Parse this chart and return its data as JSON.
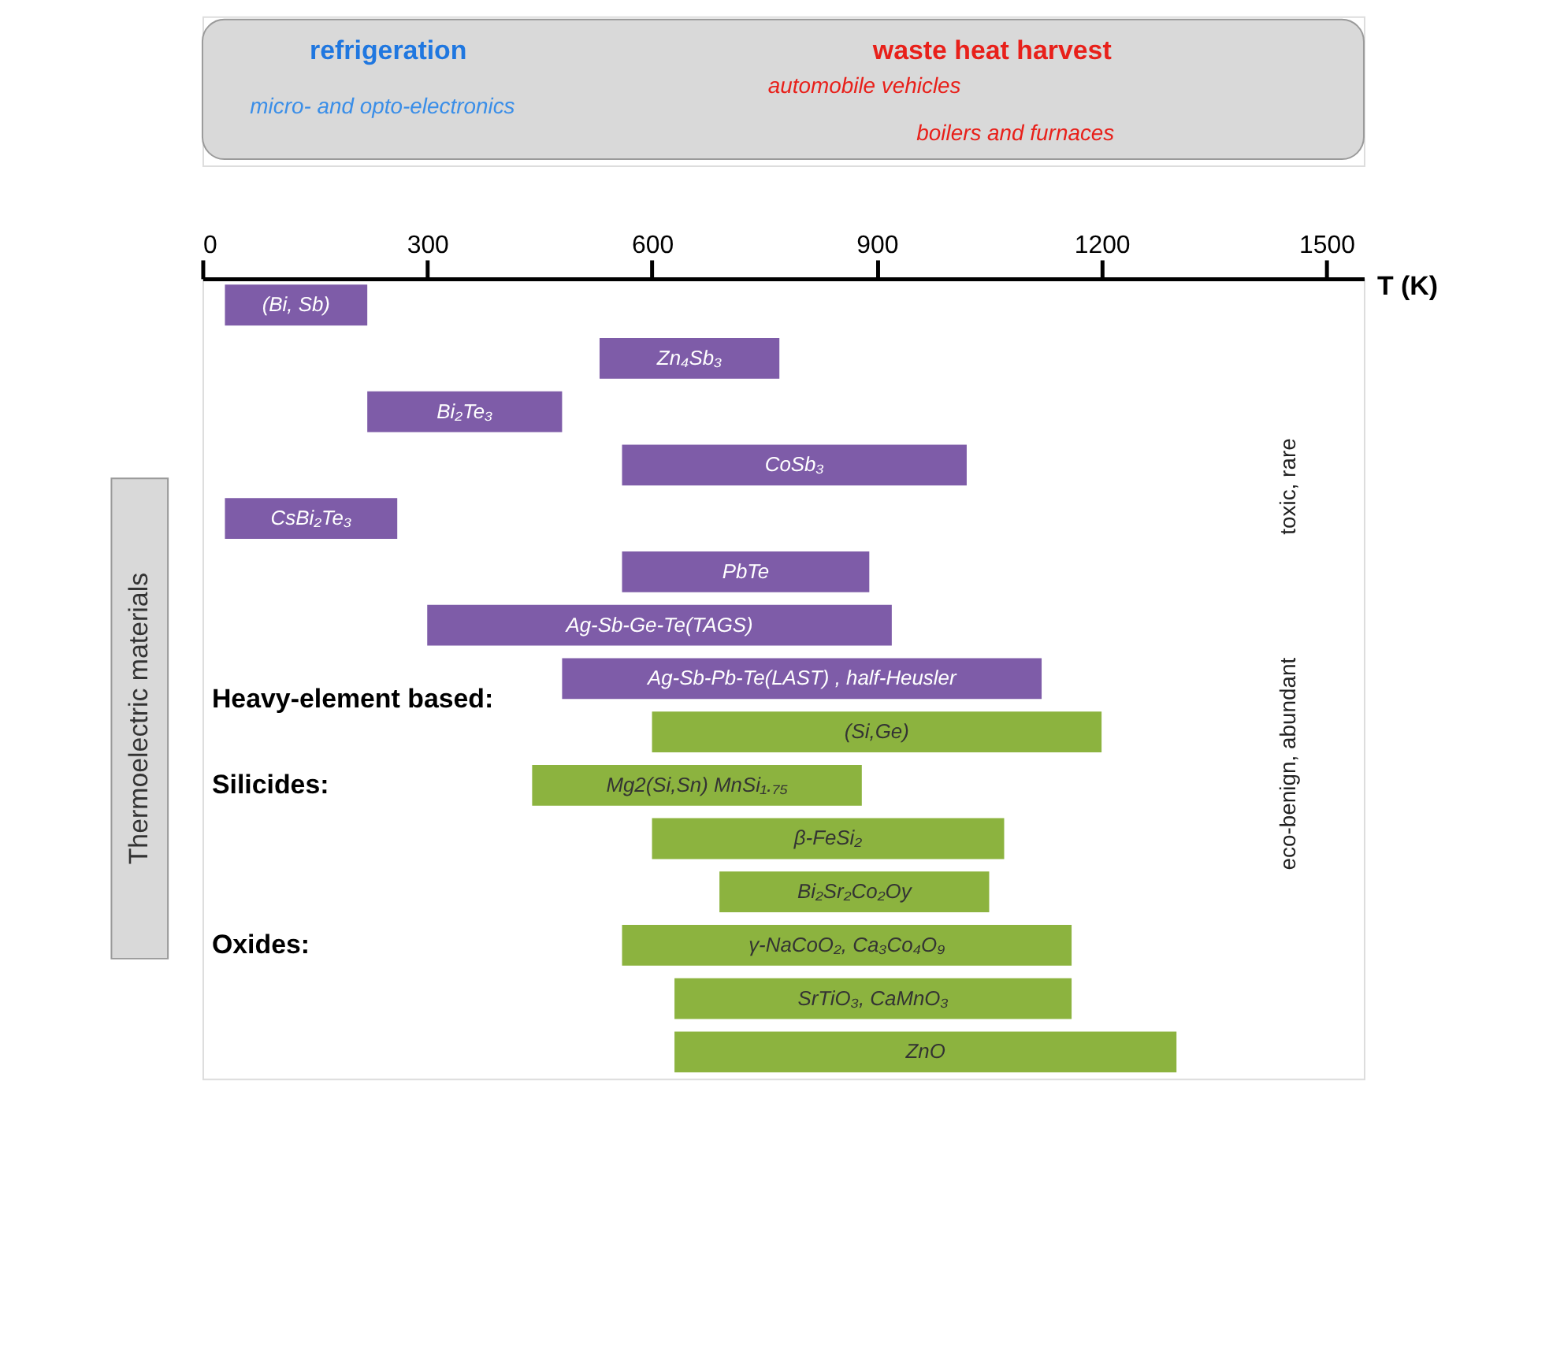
{
  "chart_data": {
    "type": "bar",
    "orientation": "horizontal",
    "xlabel": "T (K)",
    "categories": [
      "(Bi, Sb)",
      "Zn₄Sb₃",
      "Bi₂Te₃",
      "CoSb₃",
      "CsBi₂Te₃",
      "PbTe",
      "Ag-Sb-Ge-Te(TAGS)",
      "Ag-Sb-Pb-Te(LAST) , half-Heusler",
      "(Si,Ge)",
      "Mg2(Si,Sn)  MnSi₁.₇₅",
      "β-FeSi₂",
      "Bi₂Sr₂Co₂Oy",
      "γ-NaCoO₂, Ca₃Co₄O₉",
      "SrTiO₃,  CaMnO₃",
      "ZnO"
    ],
    "base": [
      30,
      530,
      220,
      560,
      30,
      560,
      300,
      480,
      600,
      440,
      600,
      690,
      560,
      630,
      630
    ],
    "values": [
      190,
      240,
      260,
      460,
      230,
      330,
      620,
      640,
      600,
      440,
      470,
      360,
      600,
      530,
      670
    ],
    "colors": [
      "#7e5ca8",
      "#7e5ca8",
      "#7e5ca8",
      "#7e5ca8",
      "#7e5ca8",
      "#7e5ca8",
      "#7e5ca8",
      "#7e5ca8",
      "#8cb33f",
      "#8cb33f",
      "#8cb33f",
      "#8cb33f",
      "#8cb33f",
      "#8cb33f",
      "#8cb33f"
    ],
    "xlim": [
      0,
      1550
    ],
    "xticks": [
      0,
      300,
      600,
      900,
      1200,
      1500
    ],
    "grid": false,
    "tick_labels": "x",
    "annotations": [
      "refrigeration",
      "micro- and opto-electronics",
      "waste heat harvest",
      "automobile vehicles",
      "boilers and furnaces",
      "Heavy-element based:",
      "Silicides:",
      "Oxides:",
      "Thermoelectric materials",
      "toxic, rare",
      "eco-benign, abundant"
    ]
  }
}
